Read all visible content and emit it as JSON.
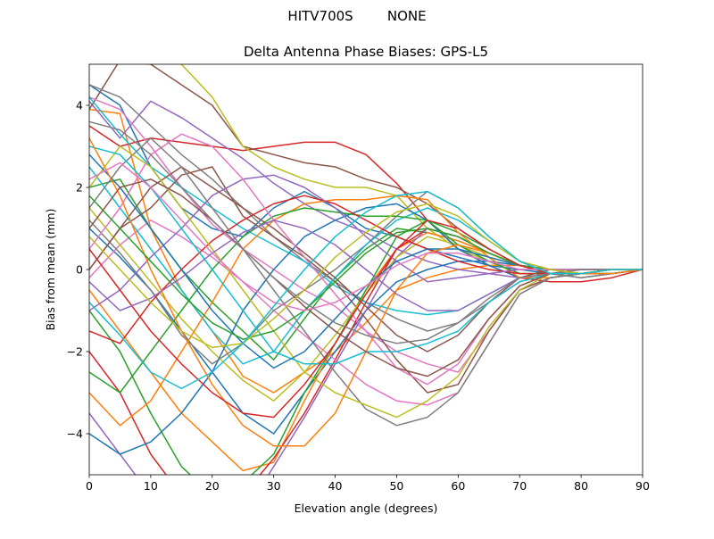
{
  "suptitle": "HITV700S        NONE",
  "chart_data": {
    "type": "line",
    "title": "Delta Antenna Phase Biases: GPS-L5",
    "xlabel": "Elevation angle (degrees)",
    "ylabel": "Bias from mean (mm)",
    "xlim": [
      0,
      90
    ],
    "ylim": [
      -5,
      5
    ],
    "xticks": [
      0,
      10,
      20,
      30,
      40,
      50,
      60,
      70,
      80,
      90
    ],
    "yticks": [
      -4,
      -2,
      0,
      2,
      4
    ],
    "grid": false,
    "legend": false,
    "x": [
      0,
      5,
      10,
      15,
      20,
      25,
      30,
      35,
      40,
      45,
      50,
      55,
      60,
      65,
      70,
      75,
      80,
      85,
      90
    ],
    "palette": [
      "#1f77b4",
      "#ff7f0e",
      "#2ca02c",
      "#d62728",
      "#9467bd",
      "#8c564b",
      "#e377c2",
      "#7f7f7f",
      "#bcbd22",
      "#17becf"
    ],
    "series": [
      {
        "values": [
          4.5,
          4.0,
          2.5,
          1.5,
          1.0,
          0.8,
          1.5,
          1.9,
          1.5,
          1.0,
          0.8,
          0.5,
          0.3,
          0.1,
          0.0,
          -0.1,
          -0.1,
          -0.1,
          0.0
        ]
      },
      {
        "values": [
          3.9,
          3.8,
          1.0,
          -0.5,
          -1.5,
          -2.6,
          -3.0,
          -2.5,
          -2.0,
          -1.3,
          -0.5,
          -0.2,
          0.0,
          0.1,
          0.1,
          0.0,
          0.0,
          0.0,
          0.0
        ]
      },
      {
        "values": [
          2.0,
          2.2,
          1.0,
          0.0,
          -0.8,
          -1.5,
          -2.2,
          -1.2,
          -0.2,
          0.5,
          1.0,
          0.9,
          0.7,
          0.4,
          0.1,
          0.0,
          -0.1,
          -0.1,
          0.0
        ]
      },
      {
        "values": [
          3.5,
          3.0,
          3.2,
          3.1,
          3.0,
          2.9,
          3.0,
          3.1,
          3.1,
          2.8,
          2.1,
          1.2,
          0.5,
          0.1,
          -0.2,
          -0.3,
          -0.3,
          -0.2,
          0.0
        ]
      },
      {
        "values": [
          4.1,
          3.2,
          4.1,
          3.7,
          3.2,
          2.7,
          2.1,
          1.6,
          1.2,
          0.9,
          0.5,
          0.2,
          0.0,
          -0.1,
          -0.2,
          -0.2,
          -0.1,
          -0.1,
          0.0
        ]
      },
      {
        "values": [
          3.9,
          5.1,
          5.0,
          4.5,
          4.0,
          3.0,
          2.8,
          2.6,
          2.5,
          2.2,
          2.0,
          1.6,
          1.0,
          0.5,
          0.1,
          -0.1,
          -0.2,
          -0.1,
          0.0
        ]
      },
      {
        "values": [
          4.2,
          3.9,
          3.0,
          2.0,
          1.1,
          0.5,
          0.0,
          -0.5,
          -0.9,
          -1.5,
          -2.0,
          -2.3,
          -2.5,
          -1.5,
          -0.5,
          -0.2,
          -0.1,
          0.0,
          0.0
        ]
      },
      {
        "values": [
          4.5,
          4.2,
          3.5,
          2.8,
          2.2,
          1.5,
          0.8,
          0.2,
          -0.3,
          -0.8,
          -1.2,
          -1.5,
          -1.3,
          -0.8,
          -0.3,
          -0.1,
          0.0,
          0.0,
          0.0
        ]
      },
      {
        "values": [
          5.0,
          5.2,
          5.2,
          5.0,
          4.2,
          3.0,
          2.5,
          2.2,
          2.0,
          2.0,
          1.8,
          1.0,
          0.5,
          0.2,
          -0.1,
          -0.1,
          -0.1,
          -0.1,
          0.0
        ]
      },
      {
        "values": [
          4.2,
          3.3,
          2.5,
          2.0,
          1.5,
          1.0,
          0.6,
          0.2,
          -0.4,
          -0.8,
          -1.0,
          -1.1,
          -1.0,
          -0.6,
          -0.2,
          -0.1,
          0.0,
          0.0,
          0.0
        ]
      },
      {
        "values": [
          1.0,
          0.3,
          -0.5,
          -1.5,
          -2.5,
          -3.5,
          -4.0,
          -3.0,
          -2.0,
          -1.0,
          -0.3,
          0.0,
          0.2,
          0.2,
          0.1,
          0.0,
          0.0,
          0.0,
          0.0
        ]
      },
      {
        "values": [
          -0.5,
          -1.5,
          -2.5,
          -3.5,
          -4.2,
          -4.9,
          -4.7,
          -3.2,
          -1.8,
          -0.5,
          0.5,
          0.9,
          0.7,
          0.4,
          0.1,
          0.0,
          0.0,
          0.0,
          0.0
        ]
      },
      {
        "values": [
          -1.0,
          -2.0,
          -3.5,
          -4.8,
          -5.5,
          -5.2,
          -4.5,
          -3.0,
          -1.8,
          -0.5,
          0.8,
          1.2,
          0.9,
          0.5,
          0.1,
          -0.1,
          -0.1,
          0.0,
          0.0
        ]
      },
      {
        "values": [
          -2.0,
          -3.0,
          -4.5,
          -5.5,
          -6.0,
          -5.5,
          -4.6,
          -3.5,
          -2.2,
          -0.8,
          0.5,
          1.0,
          0.8,
          0.4,
          0.1,
          0.0,
          0.0,
          0.0,
          0.0
        ]
      },
      {
        "values": [
          -3.5,
          -4.5,
          -5.5,
          -6.5,
          -6.5,
          -6.0,
          -4.8,
          -3.6,
          -2.3,
          -1.0,
          0.3,
          1.0,
          0.8,
          0.4,
          0.1,
          0.0,
          -0.1,
          0.0,
          0.0
        ]
      },
      {
        "values": [
          0.0,
          1.0,
          1.5,
          2.3,
          2.5,
          1.3,
          0.8,
          0.3,
          -0.3,
          -1.2,
          -2.2,
          -3.0,
          -2.8,
          -1.5,
          -0.5,
          -0.2,
          -0.1,
          0.0,
          0.0
        ]
      },
      {
        "values": [
          -0.2,
          0.6,
          1.2,
          0.8,
          0.3,
          -0.3,
          -1.0,
          -1.6,
          -2.2,
          -2.8,
          -3.2,
          -3.3,
          -3.0,
          -1.8,
          -0.6,
          -0.2,
          -0.1,
          0.0,
          0.0
        ]
      },
      {
        "values": [
          1.2,
          0.4,
          -0.5,
          -1.6,
          -2.3,
          -1.8,
          -1.0,
          -0.5,
          0.0,
          0.6,
          1.3,
          1.9,
          1.5,
          0.8,
          0.2,
          -0.1,
          -0.2,
          -0.1,
          0.0
        ]
      },
      {
        "values": [
          1.5,
          0.6,
          -0.3,
          -1.2,
          -2.0,
          -2.7,
          -3.2,
          -2.5,
          -1.6,
          -0.6,
          0.3,
          0.8,
          0.6,
          0.3,
          0.1,
          0.0,
          0.0,
          0.0,
          0.0
        ]
      },
      {
        "values": [
          2.5,
          1.5,
          0.5,
          -0.5,
          -1.5,
          -2.3,
          -2.0,
          -1.0,
          -0.2,
          0.6,
          1.2,
          1.5,
          1.2,
          0.7,
          0.2,
          0.0,
          -0.1,
          0.0,
          0.0
        ]
      },
      {
        "values": [
          -4.0,
          -4.5,
          -4.2,
          -3.5,
          -2.5,
          -1.0,
          0.0,
          0.8,
          1.2,
          1.5,
          1.6,
          1.2,
          0.5,
          0.1,
          -0.2,
          -0.2,
          -0.1,
          -0.1,
          0.0
        ]
      },
      {
        "values": [
          -3.0,
          -3.8,
          -3.2,
          -2.0,
          -0.8,
          0.5,
          1.2,
          1.6,
          1.7,
          1.7,
          1.8,
          1.7,
          0.9,
          0.3,
          -0.2,
          -0.2,
          -0.1,
          -0.1,
          0.0
        ]
      },
      {
        "values": [
          -2.5,
          -3.0,
          -2.0,
          -1.0,
          0.0,
          0.8,
          1.3,
          1.5,
          1.4,
          1.3,
          1.3,
          1.2,
          0.6,
          0.2,
          -0.1,
          -0.1,
          -0.1,
          0.0,
          0.0
        ]
      },
      {
        "values": [
          -1.5,
          -1.8,
          -0.8,
          0.0,
          0.7,
          1.2,
          1.6,
          1.8,
          1.6,
          1.2,
          0.8,
          0.5,
          0.2,
          0.0,
          -0.1,
          -0.1,
          0.0,
          0.0,
          0.0
        ]
      },
      {
        "values": [
          -1.0,
          -0.5,
          0.3,
          1.0,
          1.8,
          2.2,
          2.3,
          2.0,
          1.5,
          0.8,
          0.2,
          -0.3,
          -0.2,
          -0.1,
          0.0,
          0.0,
          0.0,
          0.0,
          0.0
        ]
      },
      {
        "values": [
          0.0,
          1.0,
          2.0,
          2.5,
          2.0,
          1.5,
          1.0,
          0.4,
          -0.2,
          -0.9,
          -1.6,
          -2.0,
          -1.6,
          -0.8,
          -0.2,
          0.0,
          0.0,
          0.0,
          0.0
        ]
      },
      {
        "values": [
          0.5,
          1.5,
          2.8,
          3.3,
          3.0,
          2.2,
          1.2,
          0.3,
          -0.6,
          -1.5,
          -2.4,
          -2.8,
          -2.3,
          -1.2,
          -0.4,
          -0.1,
          0.0,
          0.0,
          0.0
        ]
      },
      {
        "values": [
          1.5,
          2.5,
          3.2,
          2.5,
          1.5,
          0.5,
          -0.5,
          -1.5,
          -2.5,
          -3.4,
          -3.8,
          -3.6,
          -3.0,
          -1.8,
          -0.6,
          -0.2,
          -0.1,
          0.0,
          0.0
        ]
      },
      {
        "values": [
          2.0,
          3.0,
          2.5,
          1.5,
          0.5,
          -0.5,
          -1.5,
          -2.5,
          -3.0,
          -3.3,
          -3.6,
          -3.2,
          -2.6,
          -1.4,
          -0.5,
          -0.1,
          0.0,
          0.0,
          0.0
        ]
      },
      {
        "values": [
          3.0,
          2.8,
          2.0,
          1.0,
          0.0,
          -1.0,
          -2.0,
          -2.3,
          -2.3,
          -2.0,
          -2.0,
          -1.8,
          -1.5,
          -0.8,
          -0.3,
          -0.1,
          0.0,
          0.0,
          0.0
        ]
      },
      {
        "values": [
          2.8,
          2.0,
          1.0,
          0.0,
          -1.0,
          -1.8,
          -2.4,
          -2.0,
          -1.2,
          -0.4,
          0.2,
          0.5,
          0.5,
          0.3,
          0.1,
          0.0,
          0.0,
          0.0,
          0.0
        ]
      },
      {
        "values": [
          3.2,
          1.8,
          0.0,
          -1.5,
          -2.8,
          -3.8,
          -4.3,
          -4.3,
          -3.5,
          -2.0,
          -0.5,
          0.4,
          0.6,
          0.4,
          0.1,
          0.0,
          -0.1,
          0.0,
          0.0
        ]
      },
      {
        "values": [
          1.8,
          1.0,
          0.2,
          -0.6,
          -1.3,
          -1.7,
          -1.5,
          -1.0,
          -0.3,
          0.4,
          0.9,
          1.0,
          0.8,
          0.4,
          0.1,
          0.0,
          0.0,
          0.0,
          0.0
        ]
      },
      {
        "values": [
          0.5,
          -0.5,
          -1.5,
          -2.3,
          -3.0,
          -3.5,
          -3.6,
          -2.8,
          -1.8,
          -0.6,
          0.5,
          1.2,
          1.0,
          0.5,
          0.1,
          -0.1,
          -0.1,
          0.0,
          0.0
        ]
      },
      {
        "values": [
          -0.3,
          -1.0,
          -0.7,
          -0.2,
          0.4,
          0.9,
          1.2,
          1.0,
          0.6,
          0.0,
          -0.6,
          -1.0,
          -1.0,
          -0.6,
          -0.2,
          -0.1,
          0.0,
          0.0,
          0.0
        ]
      },
      {
        "values": [
          1.0,
          2.0,
          2.2,
          1.8,
          1.2,
          0.5,
          -0.2,
          -0.9,
          -1.5,
          -2.0,
          -2.4,
          -2.6,
          -2.2,
          -1.2,
          -0.4,
          -0.1,
          0.0,
          0.0,
          0.0
        ]
      },
      {
        "values": [
          2.2,
          2.6,
          2.0,
          1.2,
          0.4,
          -0.3,
          -0.8,
          -1.0,
          -0.8,
          -0.4,
          0.1,
          0.4,
          0.4,
          0.2,
          0.0,
          0.0,
          0.0,
          0.0,
          0.0
        ]
      },
      {
        "values": [
          3.6,
          3.4,
          2.8,
          2.0,
          1.2,
          0.5,
          -0.2,
          -0.8,
          -1.3,
          -1.6,
          -1.8,
          -1.7,
          -1.3,
          -0.7,
          -0.2,
          -0.1,
          0.0,
          0.0,
          0.0
        ]
      },
      {
        "values": [
          0.8,
          0.0,
          -0.8,
          -1.5,
          -1.9,
          -1.8,
          -1.2,
          -0.5,
          0.3,
          0.9,
          1.4,
          1.6,
          1.3,
          0.7,
          0.2,
          0.0,
          -0.1,
          0.0,
          0.0
        ]
      },
      {
        "values": [
          -0.8,
          -1.6,
          -2.5,
          -2.9,
          -2.5,
          -1.8,
          -0.9,
          0.0,
          0.8,
          1.4,
          1.8,
          1.9,
          1.5,
          0.8,
          0.2,
          -0.1,
          -0.1,
          0.0,
          0.0
        ]
      }
    ]
  }
}
